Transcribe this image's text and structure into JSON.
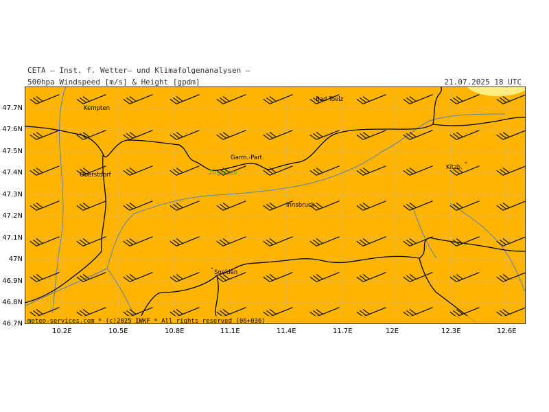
{
  "header": {
    "title": "CETA — Inst. f. Wetter— und Klimafolgenanalysen —",
    "product": "500hpa Windspeed [m/s] & Height [gpdm]",
    "datetime": "21.07.2025  18 UTC"
  },
  "footer": {
    "credit": "meteo-services.com * (c)2025 IWKF * All rights reserved (06+036)"
  },
  "colors": {
    "fill": "#ffb400",
    "fill_highlight": "#ffee80",
    "border": "#000000",
    "river": "#5b7fb0",
    "grid": "#bdbdbd",
    "barb": "#1a1a1a"
  },
  "axes": {
    "lat_labels": [
      "47.7N",
      "47.6N",
      "47.5N",
      "47.4N",
      "47.3N",
      "47.2N",
      "47.1N",
      "47N",
      "46.9N",
      "46.8N",
      "46.7N"
    ],
    "lon_labels": [
      "10.2E",
      "10.5E",
      "10.8E",
      "11.1E",
      "11.4E",
      "11.7E",
      "12E",
      "12.3E",
      "12.6E"
    ]
  },
  "cities": [
    {
      "name": "Kempten",
      "color": "#000000"
    },
    {
      "name": "Bad Toelz",
      "color": "#000000"
    },
    {
      "name": "Garm.-Part.",
      "color": "#000000"
    },
    {
      "name": "Zugspitze",
      "color": "#2db52d"
    },
    {
      "name": "Oberstdorf",
      "color": "#000000"
    },
    {
      "name": "Kitzb.",
      "color": "#000000"
    },
    {
      "name": "Innsbruck",
      "color": "#000000"
    },
    {
      "name": "Soelden",
      "color": "#000000"
    }
  ],
  "wind_barbs": {
    "direction": "WSW",
    "uniform": true
  }
}
